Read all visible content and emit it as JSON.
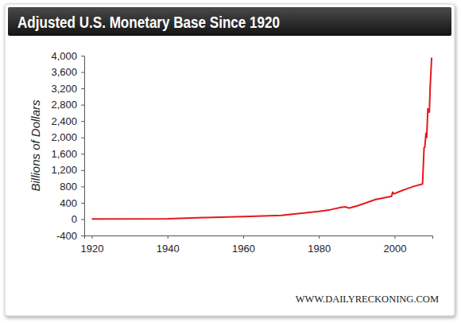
{
  "chart_data": {
    "type": "line",
    "title": "Adjusted U.S. Monetary Base Since 1920",
    "y_label": "Billions of Dollars",
    "source": "WWW.DAILYRECKONING.COM",
    "color": "#e3191e",
    "x": [
      1920,
      1940,
      1950,
      1960,
      1970,
      1975,
      1980,
      1983,
      1986,
      1987,
      1988,
      1990,
      1995,
      1999.2,
      1999.5,
      1999.8,
      2002,
      2005,
      2007.4,
      2007.8,
      2008.0,
      2008.3,
      2008.5,
      2008.8,
      2009.0,
      2009.2,
      2009.4,
      2009.8
    ],
    "values": [
      5,
      8,
      40,
      60,
      90,
      140,
      190,
      230,
      290,
      300,
      270,
      320,
      480,
      560,
      660,
      620,
      700,
      800,
      860,
      1750,
      1760,
      2100,
      2000,
      2700,
      2650,
      2620,
      3200,
      3950
    ],
    "xlim": [
      1918,
      2010
    ],
    "xticks": [
      1920,
      1940,
      1960,
      1980,
      2000
    ],
    "ylim": [
      -400,
      4000
    ],
    "yticks": [
      -400,
      0,
      400,
      800,
      {
        "value": 1200,
        "label": "1,200"
      },
      {
        "value": 1600,
        "label": "1,600"
      },
      {
        "value": 2000,
        "label": "2,000"
      },
      {
        "value": 2400,
        "label": "2,400"
      },
      {
        "value": 2800,
        "label": "2,800"
      },
      {
        "value": 3200,
        "label": "3,200"
      },
      {
        "value": 3600,
        "label": "3,600"
      },
      {
        "value": 4000,
        "label": "4,000"
      }
    ],
    "grid": false
  }
}
